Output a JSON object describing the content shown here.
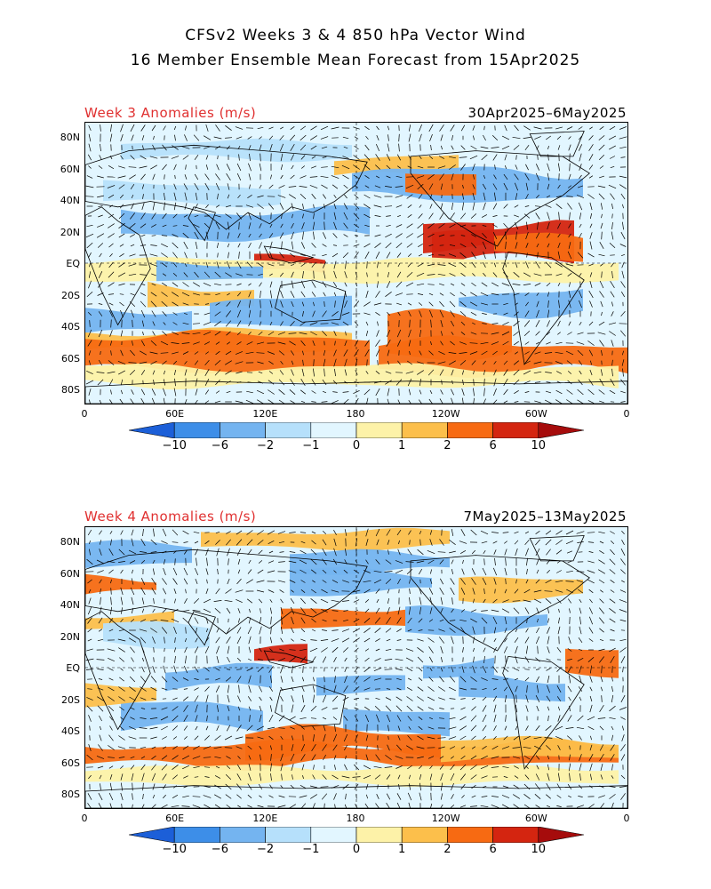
{
  "title": {
    "line1": "CFSv2 Weeks 3 & 4 850 hPa Vector Wind",
    "line2": "16 Member Ensemble Mean Forecast from 15Apr2025"
  },
  "panels": [
    {
      "label": "Week 3 Anomalies (m/s)",
      "dates": "30Apr2025–6May2025"
    },
    {
      "label": "Week 4 Anomalies (m/s)",
      "dates": "7May2025–13May2025"
    }
  ],
  "lat_labels": [
    "80N",
    "60N",
    "40N",
    "20N",
    "EQ",
    "20S",
    "40S",
    "60S",
    "80S"
  ],
  "lon_labels": [
    "0",
    "60E",
    "120E",
    "180",
    "120W",
    "60W",
    "0"
  ],
  "colorbar": {
    "labels": [
      "−10",
      "−6",
      "−2",
      "−1",
      "0",
      "1",
      "2",
      "6",
      "10"
    ],
    "colors": [
      "#1c5fd8",
      "#3d8ee8",
      "#74b4f0",
      "#b6e0fb",
      "#e2f6ff",
      "#fdf2a8",
      "#fcbf4b",
      "#f76a12",
      "#d42510",
      "#a60c0c"
    ]
  }
}
